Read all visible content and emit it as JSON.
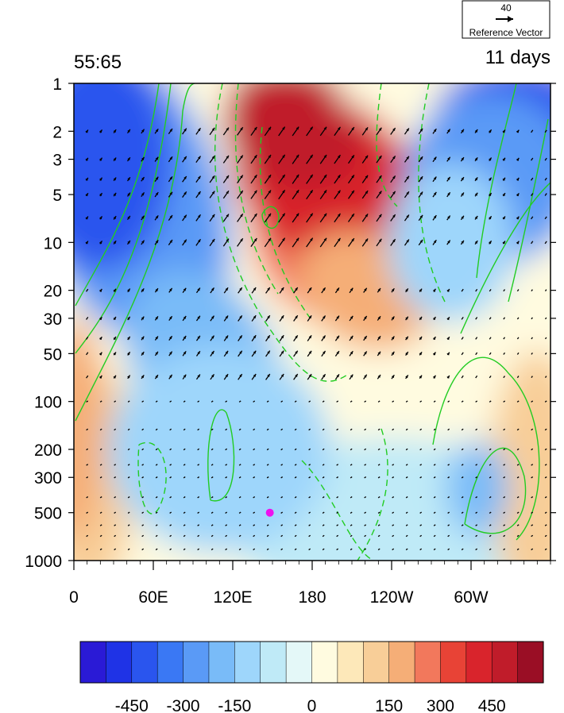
{
  "chart_data": {
    "type": "heatmap",
    "title_left": "55:65",
    "title_right": "11 days",
    "reference_vector": {
      "magnitude": "40",
      "label": "Reference Vector"
    },
    "x_ticks": [
      "0",
      "60E",
      "120E",
      "180",
      "120W",
      "60W"
    ],
    "x_range_deg_east": [
      0,
      360
    ],
    "y_ticks": [
      "1",
      "2",
      "3",
      "5",
      "10",
      "20",
      "30",
      "50",
      "100",
      "200",
      "300",
      "500",
      "1000"
    ],
    "y_levels": [
      1,
      2,
      3,
      5,
      7,
      10,
      20,
      30,
      50,
      70,
      100,
      150,
      200,
      250,
      300,
      400,
      500,
      600,
      700,
      850,
      925,
      1000
    ],
    "y_scale": "log",
    "y_range": [
      1,
      1000
    ],
    "colorbar": {
      "levels": [
        -525,
        -450,
        -375,
        -300,
        -225,
        -150,
        -75,
        -25,
        0,
        25,
        75,
        150,
        225,
        300,
        375,
        450,
        525
      ],
      "tick_labels": [
        "-450",
        "-300",
        "-150",
        "0",
        "150",
        "300",
        "450"
      ],
      "colors": [
        "#2a1ad6",
        "#1f33e6",
        "#2a55ee",
        "#3a78f4",
        "#5a9af6",
        "#79bbf8",
        "#9ed6fb",
        "#bfeaf7",
        "#e4f8f8",
        "#fffbe0",
        "#fde8b9",
        "#f8ce98",
        "#f5ae77",
        "#f2785c",
        "#e84336",
        "#d9242c",
        "#c01c2a",
        "#9a0e25"
      ]
    },
    "marker": {
      "lon": 148,
      "level": 500,
      "color": "#ee11ee"
    },
    "contour_color": "#22cc22"
  }
}
